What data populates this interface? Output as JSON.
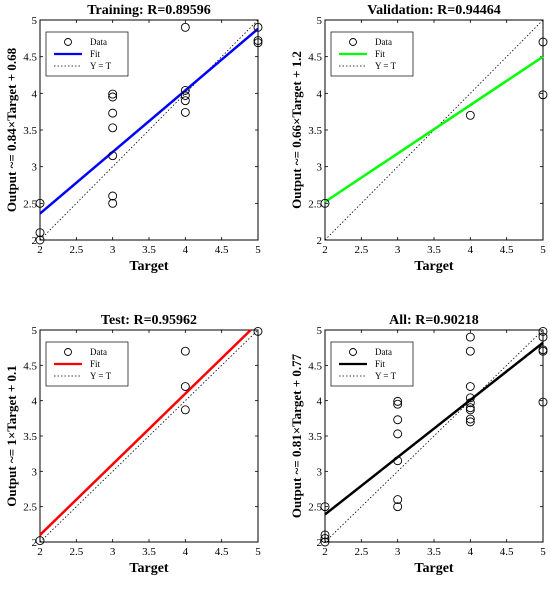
{
  "chart_data": [
    {
      "type": "scatter",
      "title": "Training: R=0.89596",
      "xlabel": "Target",
      "ylabel": "Output ~= 0.84×Target + 0.68",
      "xlim": [
        2,
        5
      ],
      "ylim": [
        2,
        5
      ],
      "xticks": [
        "2",
        "2.5",
        "3",
        "3.5",
        "4",
        "4.5",
        "5"
      ],
      "yticks": [
        "2",
        "2.5",
        "3",
        "3.5",
        "4",
        "4.5",
        "5"
      ],
      "fit": {
        "slope": 0.84,
        "intercept": 0.68,
        "color": "#0000ff"
      },
      "legend": [
        "Data",
        "Fit",
        "Y = T"
      ],
      "legend_position": "top-left",
      "points": [
        [
          2,
          2.5
        ],
        [
          2,
          2.1
        ],
        [
          2,
          2.0
        ],
        [
          3,
          2.5
        ],
        [
          3,
          2.6
        ],
        [
          3,
          3.15
        ],
        [
          3,
          3.53
        ],
        [
          3,
          3.73
        ],
        [
          3,
          3.95
        ],
        [
          3,
          3.99
        ],
        [
          4,
          3.74
        ],
        [
          4,
          3.9
        ],
        [
          4,
          3.97
        ],
        [
          4,
          4.04
        ],
        [
          4,
          4.9
        ],
        [
          5,
          4.69
        ],
        [
          5,
          4.72
        ],
        [
          5,
          4.9
        ]
      ]
    },
    {
      "type": "scatter",
      "title": "Validation: R=0.94464",
      "xlabel": "Target",
      "ylabel": "Output ~= 0.66×Target + 1.2",
      "xlim": [
        2,
        5
      ],
      "ylim": [
        2,
        5
      ],
      "xticks": [
        "2",
        "2.5",
        "3",
        "3.5",
        "4",
        "4.5",
        "5"
      ],
      "yticks": [
        "2",
        "2.5",
        "3",
        "3.5",
        "4",
        "4.5",
        "5"
      ],
      "fit": {
        "slope": 0.66,
        "intercept": 1.2,
        "color": "#00ff00"
      },
      "legend": [
        "Data",
        "Fit",
        "Y = T"
      ],
      "legend_position": "top-left",
      "points": [
        [
          2,
          2.5
        ],
        [
          4,
          3.7
        ],
        [
          5,
          3.98
        ],
        [
          5,
          4.7
        ]
      ]
    },
    {
      "type": "scatter",
      "title": "Test: R=0.95962",
      "xlabel": "Target",
      "ylabel": "Output ~= 1×Target + 0.1",
      "xlim": [
        2,
        5
      ],
      "ylim": [
        2,
        5
      ],
      "xticks": [
        "2",
        "2.5",
        "3",
        "3.5",
        "4",
        "4.5",
        "5"
      ],
      "yticks": [
        "2",
        "2.5",
        "3",
        "3.5",
        "4",
        "4.5",
        "5"
      ],
      "fit": {
        "slope": 1.0,
        "intercept": 0.1,
        "color": "#ff0000"
      },
      "legend": [
        "Data",
        "Fit",
        "Y = T"
      ],
      "legend_position": "top-left",
      "points": [
        [
          2,
          2.02
        ],
        [
          4,
          3.87
        ],
        [
          4,
          4.2
        ],
        [
          4,
          4.7
        ],
        [
          5,
          4.98
        ]
      ]
    },
    {
      "type": "scatter",
      "title": "All: R=0.90218",
      "xlabel": "Target",
      "ylabel": "Output ~= 0.81×Target + 0.77",
      "xlim": [
        2,
        5
      ],
      "ylim": [
        2,
        5
      ],
      "xticks": [
        "2",
        "2.5",
        "3",
        "3.5",
        "4",
        "4.5",
        "5"
      ],
      "yticks": [
        "2",
        "2.5",
        "3",
        "3.5",
        "4",
        "4.5",
        "5"
      ],
      "fit": {
        "slope": 0.81,
        "intercept": 0.77,
        "color": "#000000"
      },
      "legend": [
        "Data",
        "Fit",
        "Y = T"
      ],
      "legend_position": "top-left",
      "points": [
        [
          2,
          2.0
        ],
        [
          2,
          2.05
        ],
        [
          2,
          2.1
        ],
        [
          2,
          2.5
        ],
        [
          3,
          2.5
        ],
        [
          3,
          2.6
        ],
        [
          3,
          3.15
        ],
        [
          3,
          3.53
        ],
        [
          3,
          3.73
        ],
        [
          3,
          3.95
        ],
        [
          3,
          3.99
        ],
        [
          4,
          3.7
        ],
        [
          4,
          3.74
        ],
        [
          4,
          3.87
        ],
        [
          4,
          3.9
        ],
        [
          4,
          3.97
        ],
        [
          4,
          4.04
        ],
        [
          4,
          4.2
        ],
        [
          4,
          4.7
        ],
        [
          4,
          4.9
        ],
        [
          5,
          3.98
        ],
        [
          5,
          4.7
        ],
        [
          5,
          4.72
        ],
        [
          5,
          4.9
        ],
        [
          5,
          4.98
        ]
      ]
    }
  ]
}
